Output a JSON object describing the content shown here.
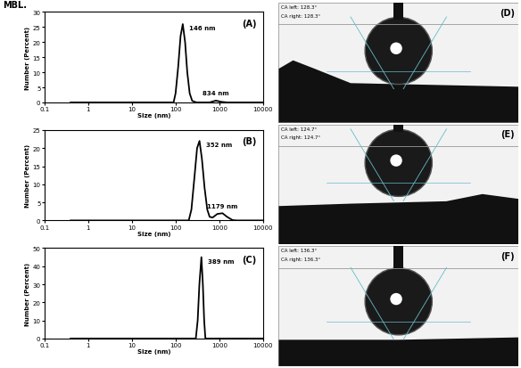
{
  "fragment": "MBL.",
  "chart_data": [
    {
      "type": "line",
      "panel_label": "(A)",
      "xlabel": "Size (nm)",
      "ylabel": "Number (Percent)",
      "log": "x",
      "color": "#000000",
      "x": [
        0.4,
        90,
        100,
        115,
        130,
        146,
        165,
        185,
        210,
        240,
        300,
        600,
        834,
        1100,
        1500,
        10000
      ],
      "values": [
        0,
        0,
        3,
        12,
        22,
        26,
        20,
        10,
        3,
        0.5,
        0,
        0,
        0.6,
        0.2,
        0,
        0
      ],
      "xlim": [
        0.1,
        10000
      ],
      "xticks": [
        0.1,
        1,
        10,
        100,
        1000,
        10000
      ],
      "ylim": [
        0,
        30
      ],
      "yticks": [
        0,
        5,
        10,
        15,
        20,
        25,
        30
      ],
      "annotations": [
        {
          "text": "146 nm",
          "x": 146,
          "y": 26
        },
        {
          "text": "834 nm",
          "x": 834,
          "y": 0.6
        }
      ]
    },
    {
      "type": "line",
      "panel_label": "(B)",
      "xlabel": "Size (nm)",
      "ylabel": "Number (Percent)",
      "log": "x",
      "color": "#000000",
      "x": [
        0.4,
        200,
        230,
        270,
        310,
        352,
        400,
        460,
        530,
        600,
        700,
        900,
        1179,
        1500,
        2000,
        2500,
        10000
      ],
      "values": [
        0,
        0,
        3,
        12,
        20,
        22,
        17,
        9,
        3,
        1,
        0.8,
        1.8,
        2,
        1,
        0.1,
        0,
        0
      ],
      "xlim": [
        0.1,
        10000
      ],
      "xticks": [
        0.1,
        1,
        10,
        100,
        1000,
        10000
      ],
      "ylim": [
        0,
        25
      ],
      "yticks": [
        0,
        5,
        10,
        15,
        20,
        25
      ],
      "annotations": [
        {
          "text": "352 nm",
          "x": 352,
          "y": 22
        },
        {
          "text": "1179 nm",
          "x": 1179,
          "y": 2
        }
      ]
    },
    {
      "type": "line",
      "panel_label": "(C)",
      "xlabel": "Size (nm)",
      "ylabel": "Number (Percent)",
      "log": "x",
      "color": "#000000",
      "x": [
        0.4,
        290,
        320,
        350,
        389,
        420,
        450,
        480,
        10000
      ],
      "values": [
        0,
        0,
        10,
        30,
        45,
        30,
        10,
        0,
        0
      ],
      "xlim": [
        0.1,
        10000
      ],
      "xticks": [
        0.1,
        1,
        10,
        100,
        1000,
        10000
      ],
      "ylim": [
        0,
        50
      ],
      "yticks": [
        0,
        10,
        20,
        30,
        40,
        50
      ],
      "annotations": [
        {
          "text": "389 nm",
          "x": 389,
          "y": 45
        }
      ]
    }
  ],
  "images": [
    {
      "panel_label": "(D)",
      "texts": [
        "CA left: 128.3°",
        "CA right: 128.3°"
      ]
    },
    {
      "panel_label": "(E)",
      "texts": [
        "CA left: 124.7°",
        "CA right: 124.7°"
      ]
    },
    {
      "panel_label": "(F)",
      "texts": [
        "CA left: 136.3°",
        "CA right: 136.3°"
      ]
    }
  ]
}
